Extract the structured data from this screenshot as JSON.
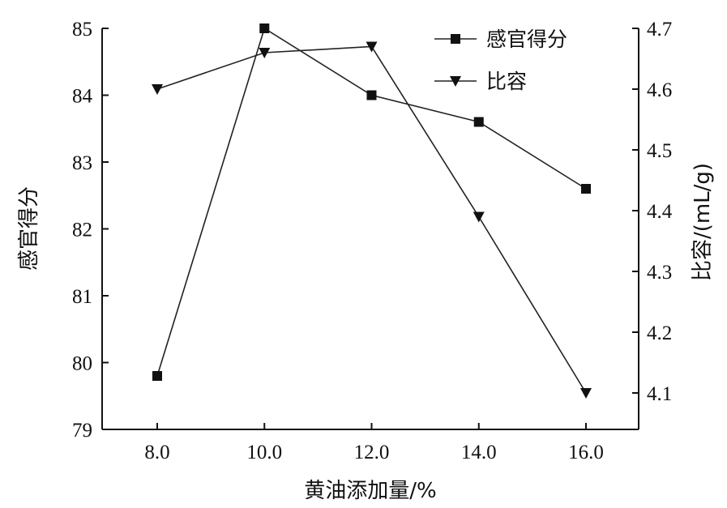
{
  "chart_data": {
    "type": "line",
    "xlabel": "黄油添加量/%",
    "ylabel_left": "感官得分",
    "ylabel_right": "比容/(mL/g)",
    "x": [
      "8.0",
      "10.0",
      "12.0",
      "14.0",
      "16.0"
    ],
    "x_values": [
      8,
      10,
      12,
      14,
      16
    ],
    "y_left_ticks": [
      "79",
      "80",
      "81",
      "82",
      "83",
      "84",
      "85"
    ],
    "y_right_ticks": [
      "4.1",
      "4.2",
      "4.3",
      "4.4",
      "4.5",
      "4.6",
      "4.7"
    ],
    "ylim_left": [
      79,
      85
    ],
    "ylim_right": [
      4.04,
      4.7
    ],
    "grid": false,
    "legend": "top-right",
    "series": [
      {
        "name": "感官得分",
        "axis": "left",
        "marker": "square",
        "values": [
          79.8,
          85.0,
          84.0,
          83.6,
          82.6
        ]
      },
      {
        "name": "比容",
        "axis": "right",
        "marker": "triangle-down",
        "values": [
          4.6,
          4.66,
          4.67,
          4.39,
          4.1
        ]
      }
    ]
  }
}
